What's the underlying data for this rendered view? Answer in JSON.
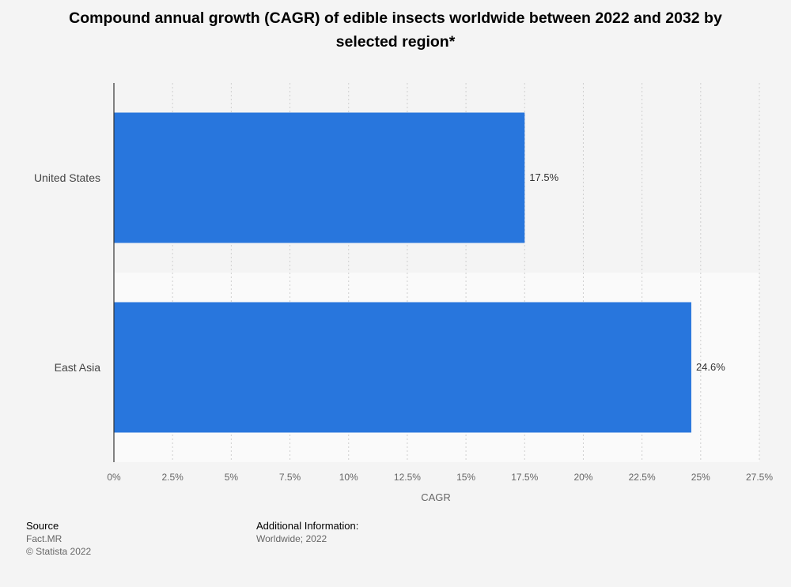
{
  "title": "Compound annual growth (CAGR) of edible insects worldwide between 2022 and 2032 by selected region*",
  "chart_data": {
    "type": "bar",
    "orientation": "horizontal",
    "categories": [
      "United States",
      "East Asia"
    ],
    "values": [
      17.5,
      24.6
    ],
    "value_labels": [
      "17.5%",
      "24.6%"
    ],
    "xlabel": "CAGR",
    "ylabel": "",
    "xlim": [
      0,
      27.5
    ],
    "ticks": [
      0,
      2.5,
      5,
      7.5,
      10,
      12.5,
      15,
      17.5,
      20,
      22.5,
      25,
      27.5
    ],
    "tick_labels": [
      "0%",
      "2.5%",
      "5%",
      "7.5%",
      "10%",
      "12.5%",
      "15%",
      "17.5%",
      "20%",
      "22.5%",
      "25%",
      "27.5%"
    ],
    "grid": true,
    "bar_color": "#2876dd"
  },
  "footer": {
    "source_heading": "Source",
    "source_name": "Fact.MR",
    "copyright": "© Statista 2022",
    "additional_heading": "Additional Information:",
    "additional_text": "Worldwide; 2022"
  }
}
